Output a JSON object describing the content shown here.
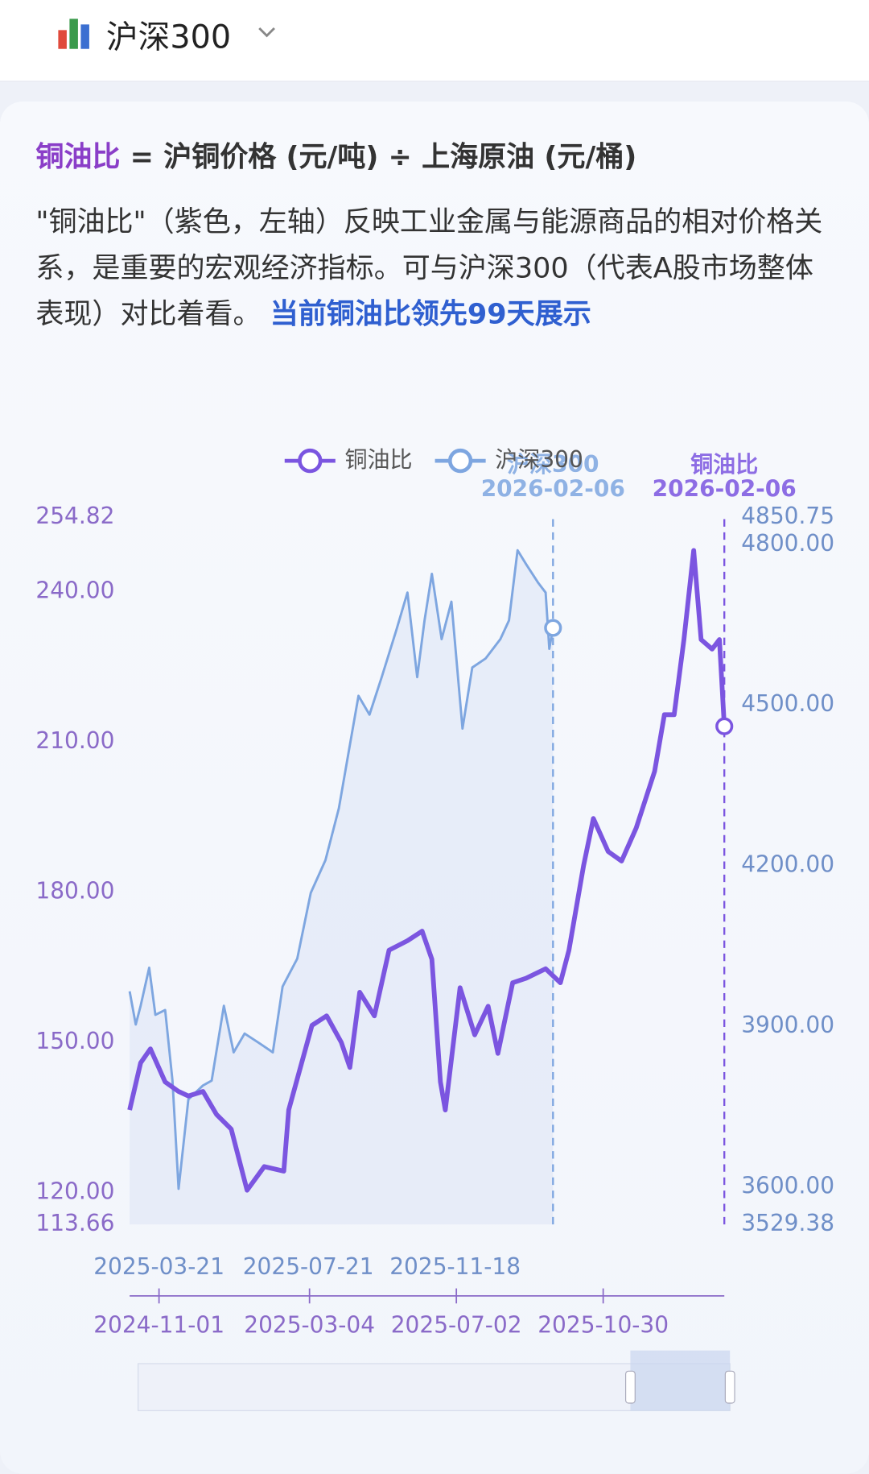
{
  "header": {
    "title": "沪深300"
  },
  "description": {
    "term": "铜油比",
    "formula": "= 沪铜价格 (元/吨) ÷ 上海原油 (元/桶)",
    "text": "\"铜油比\"（紫色，左轴）反映工业金属与能源商品的相对价格关系，是重要的宏观经济指标。可与沪深300（代表A股市场整体表现）对比着看。",
    "link": "当前铜油比领先99天展示"
  },
  "chart_data": {
    "type": "line",
    "xlim": [
      "2024-10-08",
      "2026-02-06"
    ],
    "xticks": [
      "2024-11-01",
      "2025-03-04",
      "2025-07-02",
      "2025-10-30"
    ],
    "x2lim": [
      "2025-02-25",
      "2026-06-26"
    ],
    "x2ticks": [
      "2025-03-21",
      "2025-07-21",
      "2025-11-18"
    ],
    "ylim": [
      113.66,
      254.82
    ],
    "yticks": [
      113.66,
      {
        "value": 120,
        "label": "120.00"
      },
      {
        "value": 150,
        "label": "150.00"
      },
      {
        "value": 180,
        "label": "180.00"
      },
      {
        "value": 210,
        "label": "210.00"
      },
      {
        "value": 240,
        "label": "240.00"
      },
      254.82
    ],
    "y2lim": [
      3529.38,
      4850.75
    ],
    "y2ticks": [
      3529.38,
      {
        "value": 3600,
        "label": "3600.00"
      },
      {
        "value": 3900,
        "label": "3900.00"
      },
      {
        "value": 4200,
        "label": "4200.00"
      },
      {
        "value": 4500,
        "label": "4500.00"
      },
      {
        "value": 4800,
        "label": "4800.00"
      },
      4850.75
    ],
    "series": [
      {
        "name": "铜油比",
        "color": "#7b55e0",
        "x": [
          "2024-10-08",
          "2024-10-17",
          "2024-10-25",
          "2024-11-06",
          "2024-11-17",
          "2024-11-25",
          "2024-12-07",
          "2024-12-18",
          "2024-12-30",
          "2025-01-12",
          "2025-01-26",
          "2025-02-11",
          "2025-02-15",
          "2025-03-06",
          "2025-03-18",
          "2025-03-30",
          "2025-04-06",
          "2025-04-14",
          "2025-04-26",
          "2025-05-08",
          "2025-05-23",
          "2025-06-04",
          "2025-06-12",
          "2025-06-19",
          "2025-06-23",
          "2025-07-05",
          "2025-07-17",
          "2025-07-28",
          "2025-08-05",
          "2025-08-17",
          "2025-08-28",
          "2025-09-13",
          "2025-09-25",
          "2025-10-02",
          "2025-10-14",
          "2025-10-22",
          "2025-11-03",
          "2025-11-14",
          "2025-11-26",
          "2025-12-11",
          "2025-12-19",
          "2025-12-27",
          "2026-01-04",
          "2026-01-12",
          "2026-01-18",
          "2026-01-27",
          "2026-02-02",
          "2026-02-06"
        ],
        "values": [
          136.5,
          145.9,
          148.7,
          142.1,
          140.2,
          139.3,
          140.2,
          135.6,
          132.7,
          120.5,
          125.2,
          124.3,
          136.5,
          153.4,
          155.3,
          150.0,
          145.0,
          160.0,
          155.3,
          168.4,
          170.3,
          172.2,
          166.6,
          142.1,
          136.5,
          160.9,
          151.5,
          157.2,
          147.8,
          161.9,
          162.8,
          164.7,
          161.9,
          168.4,
          185.3,
          194.7,
          188.1,
          186.2,
          192.8,
          204.1,
          215.4,
          215.4,
          230.4,
          248.2,
          230.4,
          228.5,
          230.4,
          213.1
        ]
      },
      {
        "name": "沪深300",
        "color": "#7ea6e0",
        "axis": "y2",
        "xaxis": "x2",
        "x": [
          "2025-02-25",
          "2025-03-02",
          "2025-03-06",
          "2025-03-13",
          "2025-03-18",
          "2025-03-26",
          "2025-04-01",
          "2025-04-06",
          "2025-04-14",
          "2025-04-26",
          "2025-05-03",
          "2025-05-13",
          "2025-05-21",
          "2025-05-30",
          "2025-06-11",
          "2025-06-22",
          "2025-06-30",
          "2025-07-12",
          "2025-07-23",
          "2025-08-04",
          "2025-08-15",
          "2025-08-23",
          "2025-08-31",
          "2025-09-09",
          "2025-09-19",
          "2025-10-01",
          "2025-10-10",
          "2025-10-18",
          "2025-10-24",
          "2025-10-30",
          "2025-11-07",
          "2025-11-15",
          "2025-11-24",
          "2025-12-02",
          "2025-12-13",
          "2025-12-25",
          "2026-01-01",
          "2026-01-08",
          "2026-01-15",
          "2026-01-25",
          "2026-01-31",
          "2026-02-03",
          "2026-02-06"
        ],
        "values": [
          3965,
          3903,
          3938,
          4009,
          3921,
          3930,
          3798,
          3596,
          3763,
          3789,
          3798,
          3938,
          3851,
          3886,
          3868,
          3851,
          3974,
          4026,
          4149,
          4210,
          4307,
          4412,
          4517,
          4482,
          4552,
          4640,
          4710,
          4552,
          4658,
          4745,
          4623,
          4693,
          4456,
          4570,
          4587,
          4623,
          4658,
          4789,
          4763,
          4728,
          4710,
          4605,
          4644
        ]
      }
    ]
  }
}
